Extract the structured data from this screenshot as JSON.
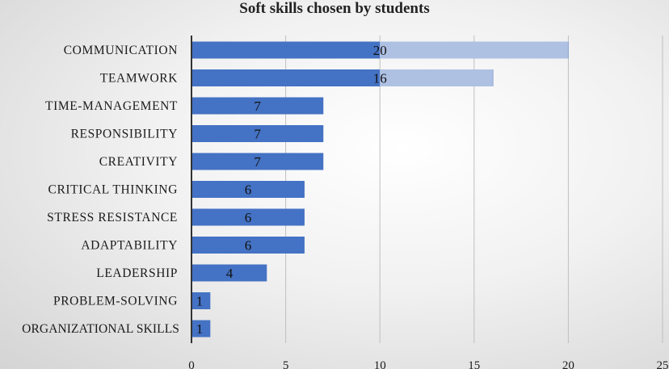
{
  "chart_data": {
    "type": "bar",
    "orientation": "horizontal",
    "title": "Soft skills chosen by students",
    "xlabel": "",
    "ylabel": "",
    "categories": [
      "COMMUNICATION",
      "TEAMWORK",
      "TIME-MANAGEMENT",
      "RESPONSIBILITY",
      "CREATIVITY",
      "CRITICAL THINKING",
      "STRESS RESISTANCE",
      "ADAPTABILITY",
      "LEADERSHIP",
      "PROBLEM-SOLVING",
      "ORGANIZATIONAL SKILLS"
    ],
    "values": [
      20,
      16,
      7,
      7,
      7,
      6,
      6,
      6,
      4,
      1,
      1
    ],
    "data_labels": [
      "20",
      "16",
      "7",
      "7",
      "7",
      "6",
      "6",
      "6",
      "4",
      "1",
      "1"
    ],
    "xlim": [
      0,
      25
    ],
    "x_ticks": [
      "0",
      "5",
      "10",
      "15",
      "20",
      "25"
    ],
    "grid": "vertical",
    "legend": "none",
    "colors": {
      "bar": "#4472c4",
      "bar_light": "#aec1e3",
      "grid": "#bfbfbf",
      "axis": "#333333",
      "text": "#1a1a1a"
    }
  }
}
